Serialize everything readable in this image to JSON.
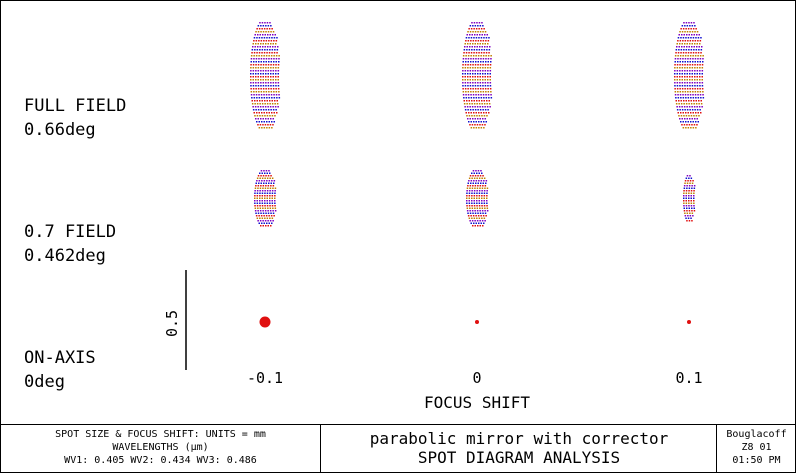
{
  "rows": [
    {
      "label_line1": "FULL FIELD",
      "label_line2": "0.66deg"
    },
    {
      "label_line1": "0.7 FIELD",
      "label_line2": "0.462deg"
    },
    {
      "label_line1": "ON-AXIS",
      "label_line2": "0deg"
    }
  ],
  "focus_shifts": [
    "-0.1",
    "0",
    "0.1"
  ],
  "x_axis_label": "FOCUS SHIFT",
  "scale_bar_label": "0.5",
  "footer": {
    "units_line1": "SPOT SIZE & FOCUS SHIFT: UNITS = mm",
    "units_line2": "WAVELENGTHS (μm)",
    "units_line3": "WV1: 0.405 WV2: 0.434 WV3: 0.486",
    "title_line1": "parabolic mirror with corrector",
    "title_line2": "SPOT DIAGRAM ANALYSIS",
    "author": "Bouglacoff",
    "date": "Z8  01",
    "time": "01:50 PM"
  },
  "colors": {
    "wv1": "#8000c0",
    "wv2": "#1010d0",
    "wv3": "#e01010",
    "alt": "#c08000"
  },
  "spots": [
    [
      {
        "shape": "elongated",
        "size": "large"
      },
      {
        "shape": "elongated",
        "size": "large"
      },
      {
        "shape": "elongated",
        "size": "large"
      }
    ],
    [
      {
        "shape": "elongated",
        "size": "medium"
      },
      {
        "shape": "elongated",
        "size": "medium"
      },
      {
        "shape": "elongated",
        "size": "small"
      }
    ],
    [
      {
        "shape": "dot",
        "size": "large"
      },
      {
        "shape": "dot",
        "size": "tiny"
      },
      {
        "shape": "dot",
        "size": "tiny"
      }
    ]
  ]
}
